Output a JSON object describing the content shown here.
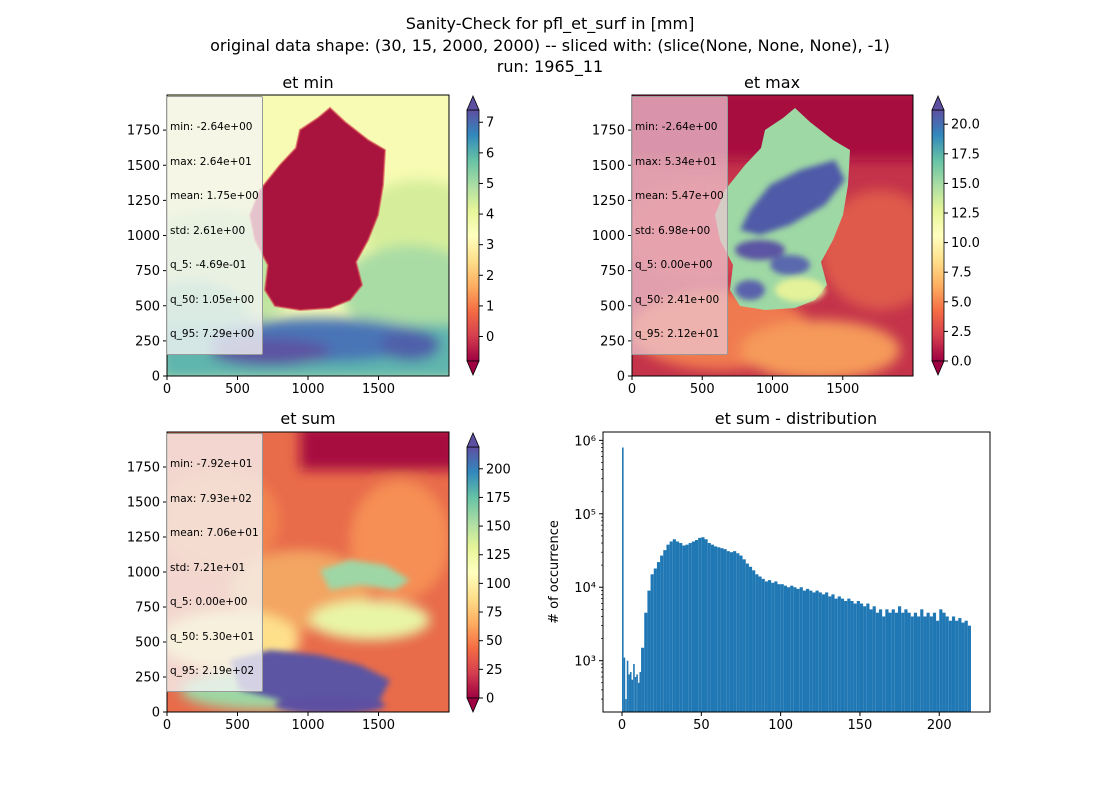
{
  "suptitle": {
    "line1": "Sanity-Check for pfl_et_surf in [mm]",
    "line2": "original data shape: (30, 15, 2000, 2000) -- sliced with: (slice(None, None, None), -1)",
    "line3": "run: 1965_11"
  },
  "colors": {
    "spectral": [
      "#9e0142",
      "#d53e4f",
      "#f46d43",
      "#fdae61",
      "#fee08b",
      "#ffffbf",
      "#e6f598",
      "#abdda4",
      "#66c2a5",
      "#3288bd",
      "#5e4fa2"
    ],
    "histogram": "#1f77b4"
  },
  "panels": [
    {
      "title": "et min",
      "x_ticks": [
        "0",
        "500",
        "1000",
        "1500"
      ],
      "y_ticks": [
        "0",
        "250",
        "500",
        "750",
        "1000",
        "1250",
        "1500",
        "1750"
      ],
      "colorbar_ticks": [
        "0",
        "1",
        "2",
        "3",
        "4",
        "5",
        "6",
        "7"
      ],
      "colorbar_range": [
        -0.8,
        7.4
      ],
      "stats": [
        "min: -2.64e+00",
        "max: 2.64e+01",
        "mean: 1.75e+00",
        "std: 2.61e+00",
        "q_5: -4.69e-01",
        "q_50: 1.05e+00",
        "q_95: 7.29e+00"
      ]
    },
    {
      "title": "et max",
      "x_ticks": [
        "0",
        "500",
        "1000",
        "1500"
      ],
      "y_ticks": [
        "0",
        "250",
        "500",
        "750",
        "1000",
        "1250",
        "1500",
        "1750"
      ],
      "colorbar_ticks": [
        "0.0",
        "2.5",
        "5.0",
        "7.5",
        "10.0",
        "12.5",
        "15.0",
        "17.5",
        "20.0"
      ],
      "colorbar_range": [
        0,
        21.2
      ],
      "stats": [
        "min: -2.64e+00",
        "max: 5.34e+01",
        "mean: 5.47e+00",
        "std: 6.98e+00",
        "q_5: 0.00e+00",
        "q_50: 2.41e+00",
        "q_95: 2.12e+01"
      ]
    },
    {
      "title": "et sum",
      "x_ticks": [
        "0",
        "500",
        "1000",
        "1500"
      ],
      "y_ticks": [
        "0",
        "250",
        "500",
        "750",
        "1000",
        "1250",
        "1500",
        "1750"
      ],
      "colorbar_ticks": [
        "0",
        "25",
        "50",
        "75",
        "100",
        "125",
        "150",
        "175",
        "200"
      ],
      "colorbar_range": [
        0,
        219
      ],
      "stats": [
        "min: -7.92e+01",
        "max: 7.93e+02",
        "mean: 7.06e+01",
        "std: 7.21e+01",
        "q_5: 0.00e+00",
        "q_50: 5.30e+01",
        "q_95: 2.19e+02"
      ]
    }
  ],
  "chart_data": {
    "type": "bar",
    "title": "et sum - distribution",
    "ylabel": "# of occurrence",
    "xlabel": "",
    "y_scale": "log",
    "xlim": [
      -12,
      232
    ],
    "ylim": [
      200,
      1300000
    ],
    "x_ticks": [
      0,
      50,
      100,
      150,
      200
    ],
    "y_ticks": [
      {
        "value": 1000,
        "label": "10³"
      },
      {
        "value": 10000,
        "label": "10⁴"
      },
      {
        "value": 100000,
        "label": "10⁵"
      },
      {
        "value": 1000000,
        "label": "10⁶"
      }
    ],
    "bin_width": 1,
    "bins": [
      {
        "x": 0,
        "y": 800000
      },
      {
        "x": 1,
        "y": 1100
      },
      {
        "x": 2,
        "y": 300
      },
      {
        "x": 3,
        "y": 1000
      },
      {
        "x": 4,
        "y": 650
      },
      {
        "x": 5,
        "y": 700
      },
      {
        "x": 6,
        "y": 550
      },
      {
        "x": 7,
        "y": 900
      },
      {
        "x": 8,
        "y": 600
      },
      {
        "x": 9,
        "y": 650
      },
      {
        "x": 10,
        "y": 500
      },
      {
        "x": 11,
        "y": 700
      },
      {
        "x": 12,
        "y": 1500
      },
      {
        "x": 14,
        "y": 4500
      },
      {
        "x": 16,
        "y": 9000
      },
      {
        "x": 18,
        "y": 15000
      },
      {
        "x": 20,
        "y": 18000
      },
      {
        "x": 22,
        "y": 22000
      },
      {
        "x": 24,
        "y": 27000
      },
      {
        "x": 26,
        "y": 32000
      },
      {
        "x": 28,
        "y": 38000
      },
      {
        "x": 30,
        "y": 42000
      },
      {
        "x": 32,
        "y": 45000
      },
      {
        "x": 34,
        "y": 42000
      },
      {
        "x": 36,
        "y": 40000
      },
      {
        "x": 38,
        "y": 37000
      },
      {
        "x": 40,
        "y": 38000
      },
      {
        "x": 42,
        "y": 40000
      },
      {
        "x": 44,
        "y": 42000
      },
      {
        "x": 46,
        "y": 44000
      },
      {
        "x": 48,
        "y": 47000
      },
      {
        "x": 50,
        "y": 48000
      },
      {
        "x": 52,
        "y": 45000
      },
      {
        "x": 54,
        "y": 40000
      },
      {
        "x": 56,
        "y": 38000
      },
      {
        "x": 58,
        "y": 36000
      },
      {
        "x": 60,
        "y": 35000
      },
      {
        "x": 62,
        "y": 34000
      },
      {
        "x": 64,
        "y": 33000
      },
      {
        "x": 66,
        "y": 31000
      },
      {
        "x": 68,
        "y": 30000
      },
      {
        "x": 70,
        "y": 31000
      },
      {
        "x": 72,
        "y": 29000
      },
      {
        "x": 74,
        "y": 27000
      },
      {
        "x": 76,
        "y": 24000
      },
      {
        "x": 78,
        "y": 21000
      },
      {
        "x": 80,
        "y": 19000
      },
      {
        "x": 82,
        "y": 17000
      },
      {
        "x": 84,
        "y": 15000
      },
      {
        "x": 86,
        "y": 14000
      },
      {
        "x": 88,
        "y": 13000
      },
      {
        "x": 90,
        "y": 12000
      },
      {
        "x": 92,
        "y": 12500
      },
      {
        "x": 94,
        "y": 11500
      },
      {
        "x": 96,
        "y": 12000
      },
      {
        "x": 98,
        "y": 11000
      },
      {
        "x": 100,
        "y": 11000
      },
      {
        "x": 102,
        "y": 10500
      },
      {
        "x": 104,
        "y": 10000
      },
      {
        "x": 106,
        "y": 10500
      },
      {
        "x": 108,
        "y": 10000
      },
      {
        "x": 110,
        "y": 9500
      },
      {
        "x": 112,
        "y": 10000
      },
      {
        "x": 114,
        "y": 9000
      },
      {
        "x": 116,
        "y": 9500
      },
      {
        "x": 118,
        "y": 9000
      },
      {
        "x": 120,
        "y": 8500
      },
      {
        "x": 122,
        "y": 9000
      },
      {
        "x": 124,
        "y": 8500
      },
      {
        "x": 126,
        "y": 8000
      },
      {
        "x": 128,
        "y": 8500
      },
      {
        "x": 130,
        "y": 7500
      },
      {
        "x": 132,
        "y": 8000
      },
      {
        "x": 134,
        "y": 7000
      },
      {
        "x": 136,
        "y": 7500
      },
      {
        "x": 138,
        "y": 7000
      },
      {
        "x": 140,
        "y": 6500
      },
      {
        "x": 142,
        "y": 7000
      },
      {
        "x": 144,
        "y": 6500
      },
      {
        "x": 146,
        "y": 6000
      },
      {
        "x": 148,
        "y": 6500
      },
      {
        "x": 150,
        "y": 6000
      },
      {
        "x": 152,
        "y": 5500
      },
      {
        "x": 154,
        "y": 6000
      },
      {
        "x": 156,
        "y": 5000
      },
      {
        "x": 158,
        "y": 5500
      },
      {
        "x": 160,
        "y": 4500
      },
      {
        "x": 162,
        "y": 5000
      },
      {
        "x": 164,
        "y": 4000
      },
      {
        "x": 166,
        "y": 5000
      },
      {
        "x": 168,
        "y": 4500
      },
      {
        "x": 170,
        "y": 5000
      },
      {
        "x": 172,
        "y": 4500
      },
      {
        "x": 174,
        "y": 5500
      },
      {
        "x": 176,
        "y": 4500
      },
      {
        "x": 178,
        "y": 5000
      },
      {
        "x": 180,
        "y": 4500
      },
      {
        "x": 182,
        "y": 4000
      },
      {
        "x": 184,
        "y": 4500
      },
      {
        "x": 186,
        "y": 4000
      },
      {
        "x": 188,
        "y": 5000
      },
      {
        "x": 190,
        "y": 4000
      },
      {
        "x": 192,
        "y": 4500
      },
      {
        "x": 194,
        "y": 4000
      },
      {
        "x": 196,
        "y": 4500
      },
      {
        "x": 198,
        "y": 3500
      },
      {
        "x": 200,
        "y": 5000
      },
      {
        "x": 202,
        "y": 4500
      },
      {
        "x": 204,
        "y": 4000
      },
      {
        "x": 206,
        "y": 3500
      },
      {
        "x": 208,
        "y": 4000
      },
      {
        "x": 210,
        "y": 3500
      },
      {
        "x": 212,
        "y": 3800
      },
      {
        "x": 214,
        "y": 3300
      },
      {
        "x": 216,
        "y": 3500
      },
      {
        "x": 218,
        "y": 3000
      }
    ]
  }
}
